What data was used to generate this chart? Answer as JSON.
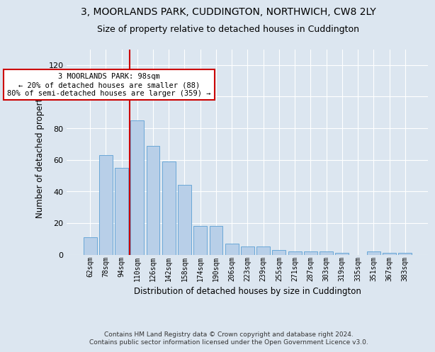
{
  "title": "3, MOORLANDS PARK, CUDDINGTON, NORTHWICH, CW8 2LY",
  "subtitle": "Size of property relative to detached houses in Cuddington",
  "xlabel": "Distribution of detached houses by size in Cuddington",
  "ylabel": "Number of detached properties",
  "categories": [
    "62sqm",
    "78sqm",
    "94sqm",
    "110sqm",
    "126sqm",
    "142sqm",
    "158sqm",
    "174sqm",
    "190sqm",
    "206sqm",
    "223sqm",
    "239sqm",
    "255sqm",
    "271sqm",
    "287sqm",
    "303sqm",
    "319sqm",
    "335sqm",
    "351sqm",
    "367sqm",
    "383sqm"
  ],
  "values": [
    11,
    63,
    55,
    85,
    69,
    59,
    44,
    18,
    18,
    7,
    5,
    5,
    3,
    2,
    2,
    2,
    1,
    0,
    2,
    1,
    1
  ],
  "bar_color": "#b8cfe8",
  "bar_edge_color": "#5a9fd4",
  "background_color": "#dce6f0",
  "grid_color": "#ffffff",
  "ylim": [
    0,
    130
  ],
  "yticks": [
    0,
    20,
    40,
    60,
    80,
    100,
    120
  ],
  "marker_color": "#cc0000",
  "annotation_title": "3 MOORLANDS PARK: 98sqm",
  "annotation_line1": "← 20% of detached houses are smaller (88)",
  "annotation_line2": "80% of semi-detached houses are larger (359) →",
  "footer1": "Contains HM Land Registry data © Crown copyright and database right 2024.",
  "footer2": "Contains public sector information licensed under the Open Government Licence v3.0.",
  "title_fontsize": 10,
  "subtitle_fontsize": 9,
  "xlabel_fontsize": 8.5,
  "ylabel_fontsize": 8.5,
  "annot_fontsize": 7.5,
  "footer_fontsize": 6.5
}
